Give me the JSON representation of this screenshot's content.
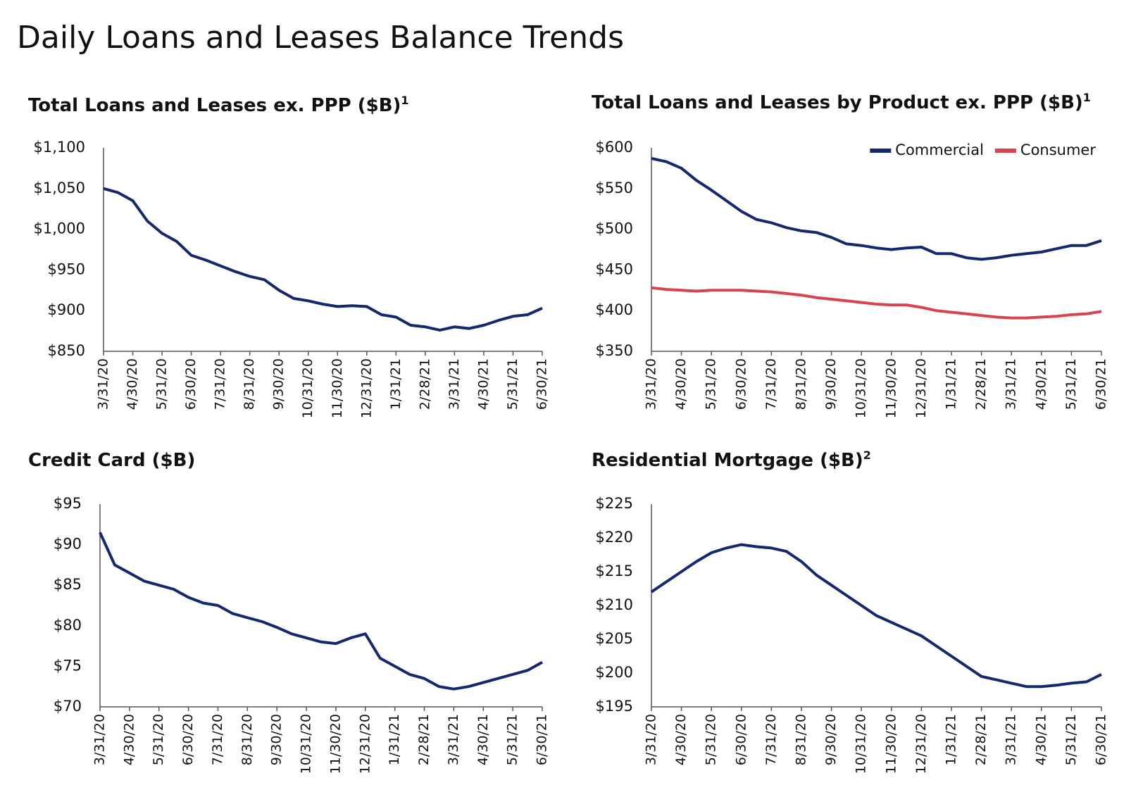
{
  "title": "Daily Loans and Leases Balance Trends",
  "chart_data": [
    {
      "type": "line",
      "title": "Total Loans and Leases ex. PPP ($B)",
      "footnote": "1",
      "categories": [
        "3/31/20",
        null,
        "4/30/20",
        null,
        "5/31/20",
        null,
        "6/30/20",
        null,
        "7/31/20",
        null,
        "8/31/20",
        null,
        "9/30/20",
        null,
        "10/31/20",
        null,
        "11/30/20",
        null,
        "12/31/20",
        null,
        "1/31/21",
        null,
        "2/28/21",
        null,
        "3/31/21",
        null,
        "4/30/21",
        null,
        "5/31/21",
        null,
        "6/30/21"
      ],
      "values": [
        1050,
        1045,
        1035,
        1010,
        995,
        985,
        968,
        962,
        955,
        948,
        942,
        938,
        925,
        915,
        912,
        908,
        905,
        906,
        905,
        895,
        892,
        882,
        880,
        876,
        880,
        878,
        882,
        888,
        893,
        895,
        903
      ],
      "color": "#14286b",
      "ylim": [
        850,
        1100
      ],
      "yticks": [
        {
          "value": 850,
          "label": "$850"
        },
        {
          "value": 900,
          "label": "$900"
        },
        {
          "value": 950,
          "label": "$950"
        },
        {
          "value": 1000,
          "label": "$1,000"
        },
        {
          "value": 1050,
          "label": "$1,050"
        },
        {
          "value": 1100,
          "label": "$1,100"
        }
      ],
      "grid": false
    },
    {
      "type": "line",
      "title": "Total Loans and Leases by Product ex. PPP ($B)",
      "footnote": "1",
      "categories": [
        "3/31/20",
        null,
        "4/30/20",
        null,
        "5/31/20",
        null,
        "6/30/20",
        null,
        "7/31/20",
        null,
        "8/31/20",
        null,
        "9/30/20",
        null,
        "10/31/20",
        null,
        "11/30/20",
        null,
        "12/31/20",
        null,
        "1/31/21",
        null,
        "2/28/21",
        null,
        "3/31/21",
        null,
        "4/30/21",
        null,
        "5/31/21",
        null,
        "6/30/21"
      ],
      "series": [
        {
          "name": "Commercial",
          "color": "#14286b",
          "values": [
            587,
            583,
            575,
            560,
            548,
            535,
            522,
            512,
            508,
            502,
            498,
            496,
            490,
            482,
            480,
            477,
            475,
            477,
            478,
            470,
            470,
            465,
            463,
            465,
            468,
            470,
            472,
            476,
            480,
            480,
            486
          ]
        },
        {
          "name": "Consumer",
          "color": "#d9434f",
          "values": [
            428,
            426,
            425,
            424,
            425,
            425,
            425,
            424,
            423,
            421,
            419,
            416,
            414,
            412,
            410,
            408,
            407,
            407,
            404,
            400,
            398,
            396,
            394,
            392,
            391,
            391,
            392,
            393,
            395,
            396,
            399
          ]
        }
      ],
      "ylim": [
        350,
        600
      ],
      "yticks": [
        {
          "value": 350,
          "label": "$350"
        },
        {
          "value": 400,
          "label": "$400"
        },
        {
          "value": 450,
          "label": "$450"
        },
        {
          "value": 500,
          "label": "$500"
        },
        {
          "value": 550,
          "label": "$550"
        },
        {
          "value": 600,
          "label": "$600"
        }
      ],
      "legend": "top-right",
      "grid": false
    },
    {
      "type": "line",
      "title": "Credit Card ($B)",
      "categories": [
        "3/31/20",
        null,
        "4/30/20",
        null,
        "5/31/20",
        null,
        "6/30/20",
        null,
        "7/31/20",
        null,
        "8/31/20",
        null,
        "9/30/20",
        null,
        "10/31/20",
        null,
        "11/30/20",
        null,
        "12/31/20",
        null,
        "1/31/21",
        null,
        "2/28/21",
        null,
        "3/31/21",
        null,
        "4/30/21",
        null,
        "5/31/21",
        null,
        "6/30/21"
      ],
      "values": [
        91.5,
        87.5,
        86.5,
        85.5,
        85,
        84.5,
        83.5,
        82.8,
        82.5,
        81.5,
        81,
        80.5,
        79.8,
        79,
        78.5,
        78,
        77.8,
        78.5,
        79,
        76,
        75,
        74,
        73.5,
        72.5,
        72.2,
        72.5,
        73,
        73.5,
        74,
        74.5,
        75.5
      ],
      "color": "#14286b",
      "ylim": [
        70,
        95
      ],
      "yticks": [
        {
          "value": 70,
          "label": "$70"
        },
        {
          "value": 75,
          "label": "$75"
        },
        {
          "value": 80,
          "label": "$80"
        },
        {
          "value": 85,
          "label": "$85"
        },
        {
          "value": 90,
          "label": "$90"
        },
        {
          "value": 95,
          "label": "$95"
        }
      ],
      "grid": false
    },
    {
      "type": "line",
      "title": "Residential Mortgage ($B)",
      "footnote": "2",
      "categories": [
        "3/31/20",
        null,
        "4/30/20",
        null,
        "5/31/20",
        null,
        "6/30/20",
        null,
        "7/31/20",
        null,
        "8/31/20",
        null,
        "9/30/20",
        null,
        "10/31/20",
        null,
        "11/30/20",
        null,
        "12/31/20",
        null,
        "1/31/21",
        null,
        "2/28/21",
        null,
        "3/31/21",
        null,
        "4/30/21",
        null,
        "5/31/21",
        null,
        "6/30/21"
      ],
      "values": [
        212,
        213.5,
        215,
        216.5,
        217.8,
        218.5,
        219,
        218.7,
        218.5,
        218,
        216.5,
        214.5,
        213,
        211.5,
        210,
        208.5,
        207.5,
        206.5,
        205.5,
        204,
        202.5,
        201,
        199.5,
        199,
        198.5,
        198,
        198,
        198.2,
        198.5,
        198.7,
        199.8
      ],
      "color": "#14286b",
      "ylim": [
        195,
        225
      ],
      "yticks": [
        {
          "value": 195,
          "label": "$195"
        },
        {
          "value": 200,
          "label": "$200"
        },
        {
          "value": 205,
          "label": "$205"
        },
        {
          "value": 210,
          "label": "$210"
        },
        {
          "value": 215,
          "label": "$215"
        },
        {
          "value": 220,
          "label": "$220"
        },
        {
          "value": 225,
          "label": "$225"
        }
      ],
      "grid": false
    }
  ]
}
